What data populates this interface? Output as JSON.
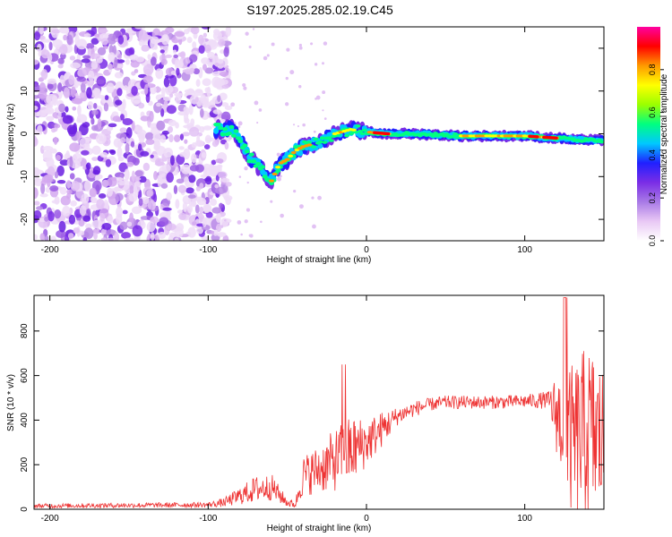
{
  "title": "S197.2025.285.02.19.C45",
  "chart_data": [
    {
      "type": "heatmap",
      "xlabel": "Height of straight line (km)",
      "ylabel": "Frequency (Hz)",
      "xlim": [
        -210,
        150
      ],
      "ylim": [
        -25,
        25
      ],
      "xticks": [
        -200,
        -100,
        0,
        100
      ],
      "yticks": [
        -20,
        -10,
        0,
        10,
        20
      ],
      "colorbar": {
        "label": "Normalized spectral amplitude",
        "range": [
          0,
          1
        ],
        "ticks": [
          "0.0",
          "0.2",
          "0.4",
          "0.6",
          "0.8"
        ],
        "colors": [
          "#ffffff",
          "#e9c8f5",
          "#a87ae6",
          "#7a2de6",
          "#2020ff",
          "#00c8ff",
          "#00ff80",
          "#9bff00",
          "#ffff00",
          "#ff9a00",
          "#ff0000",
          "#ff00a0"
        ]
      },
      "ridge": {
        "x": [
          -95,
          -90,
          -85,
          -80,
          -75,
          -70,
          -65,
          -60,
          -55,
          -50,
          -45,
          -40,
          -30,
          -20,
          -10,
          0,
          10,
          30,
          60,
          100,
          120,
          140,
          150
        ],
        "hz": [
          1,
          1,
          1,
          -1,
          -5,
          -7,
          -9,
          -11,
          -7,
          -6,
          -4,
          -3,
          -2,
          0,
          1,
          0.5,
          0,
          0,
          -0.5,
          -0.5,
          -1,
          -1.5,
          -1.5
        ]
      },
      "noise_region_x": [
        -210,
        -95
      ]
    },
    {
      "type": "line",
      "xlabel": "Height of straight line (km)",
      "ylabel": "SNR (10 * v/v)",
      "xlim": [
        -210,
        150
      ],
      "ylim": [
        0,
        960
      ],
      "xticks": [
        -200,
        -100,
        0,
        100
      ],
      "yticks": [
        0,
        200,
        400,
        600,
        800
      ],
      "color": "#ee3333",
      "envelope": {
        "x": [
          -210,
          -100,
          -90,
          -80,
          -70,
          -60,
          -50,
          -45,
          -40,
          -30,
          -20,
          -10,
          0,
          10,
          20,
          30,
          40,
          50,
          60,
          80,
          100,
          115,
          120,
          130,
          140,
          150
        ],
        "base": [
          15,
          20,
          30,
          60,
          90,
          100,
          30,
          20,
          150,
          180,
          220,
          260,
          300,
          360,
          420,
          450,
          470,
          480,
          480,
          480,
          485,
          490,
          430,
          300,
          350,
          300
        ],
        "amp": [
          10,
          12,
          20,
          40,
          60,
          60,
          20,
          15,
          90,
          110,
          140,
          160,
          110,
          80,
          40,
          35,
          30,
          30,
          30,
          30,
          30,
          40,
          180,
          350,
          400,
          350
        ]
      }
    }
  ]
}
